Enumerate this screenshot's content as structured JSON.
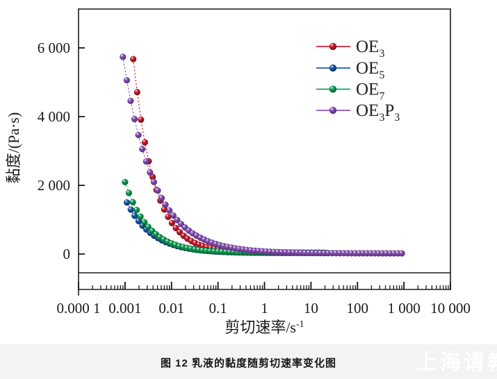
{
  "caption": "图 12  乳液的黏度随剪切速率变化图",
  "watermark": "上海请教",
  "colors": {
    "axis": "#1a1a1a",
    "band": "#f3f3f3"
  },
  "chart_data": {
    "type": "scatter",
    "title": "",
    "x_axis": {
      "label": "剪切速率",
      "unit": "/s",
      "unit_sup": "-1",
      "scale": "log",
      "min_exp": -4,
      "max_exp": 4,
      "tick_labels": [
        "0.000 1",
        "0.001",
        "0.01",
        "0.1",
        "1",
        "10",
        "100",
        "1 000",
        "10 000"
      ]
    },
    "y_axis": {
      "label": "黏度/(Pa·s)",
      "scale": "linear",
      "ticks": [
        0,
        2000,
        4000,
        6000
      ],
      "tick_labels": [
        "0",
        "2 000",
        "4 000",
        "6 000"
      ],
      "display_min": -700,
      "display_max": 7100
    },
    "legend": {
      "position": "top-right"
    },
    "series": [
      {
        "name": "OE3",
        "label_runs": [
          [
            "OE",
            "3"
          ]
        ],
        "color": "#d31f2f",
        "color_dark": "#7a0c1a",
        "x": [
          0.0015,
          0.00182,
          0.0022,
          0.00267,
          0.00323,
          0.00391,
          0.00474,
          0.00575,
          0.00696,
          0.00843,
          0.0102,
          0.0124,
          0.015,
          0.0182,
          0.022,
          0.0267,
          0.0323,
          0.0391,
          0.0474,
          0.0575,
          0.0696,
          0.0843,
          0.102,
          0.124,
          0.15,
          0.182,
          0.22,
          0.267,
          0.323,
          0.391,
          0.474,
          0.575,
          0.696,
          0.843,
          1.02,
          1.24,
          1.5,
          1.82,
          2.2,
          2.67,
          3.23,
          3.91,
          4.74,
          5.75,
          6.96,
          8.43,
          10.2,
          12.4,
          15,
          18.2
        ],
        "y": [
          5674,
          4711,
          3912,
          3250,
          2701,
          2246,
          1869,
          1556,
          1297,
          1082,
          904,
          756,
          634,
          532,
          448,
          378,
          320,
          272,
          233,
          200,
          173,
          150,
          131,
          116,
          103,
          92,
          83,
          76,
          70,
          65,
          61,
          57,
          54,
          52,
          50,
          48,
          47,
          46,
          45,
          44,
          43,
          43,
          42,
          42,
          42,
          41,
          41,
          41,
          41,
          41
        ]
      },
      {
        "name": "OE5",
        "label_runs": [
          [
            "OE",
            "5"
          ]
        ],
        "color": "#1d5cae",
        "color_dark": "#0c3268",
        "x": [
          0.0011,
          0.00133,
          0.00161,
          0.00196,
          0.00237,
          0.00287,
          0.00348,
          0.00421,
          0.00511,
          0.00619,
          0.0075,
          0.00908,
          0.011,
          0.0133,
          0.0161,
          0.0196,
          0.0237,
          0.0287,
          0.0348,
          0.0421,
          0.0511,
          0.0619,
          0.075,
          0.0908,
          0.11,
          0.133,
          0.161,
          0.196,
          0.237,
          0.287,
          0.348,
          0.421,
          0.511,
          0.619,
          0.75,
          0.908,
          1.1,
          1.33,
          1.61,
          1.96,
          2.37,
          2.87,
          3.48,
          4.21,
          5.11,
          6.19,
          7.5,
          9.08,
          11,
          13.3,
          16.1,
          19.6
        ],
        "y": [
          1501,
          1292,
          1113,
          959,
          827,
          714,
          617,
          534,
          462,
          401,
          348,
          303,
          264,
          231,
          202,
          178,
          157,
          139,
          123,
          110,
          99,
          89,
          81,
          73,
          67,
          62,
          57,
          54,
          50,
          47,
          45,
          43,
          41,
          39,
          38,
          37,
          36,
          35,
          34,
          34,
          33,
          33,
          32,
          32,
          32,
          32,
          31,
          31,
          31,
          31,
          31,
          31
        ]
      },
      {
        "name": "OE7",
        "label_runs": [
          [
            "OE",
            "7"
          ]
        ],
        "color": "#13a155",
        "color_dark": "#066534",
        "x": [
          0.001,
          0.00121,
          0.00147,
          0.00178,
          0.00215,
          0.00261,
          0.00316,
          0.00383,
          0.00464,
          0.00562,
          0.00681,
          0.00825,
          0.01,
          0.0121,
          0.0147,
          0.0178,
          0.0215,
          0.0261,
          0.0316,
          0.0383,
          0.0464,
          0.0562,
          0.0681,
          0.0825,
          0.1,
          0.121,
          0.147,
          0.178,
          0.215,
          0.261,
          0.316,
          0.383,
          0.464,
          0.562,
          0.681,
          0.825,
          1,
          1.21,
          1.47,
          1.78,
          2.15,
          2.61,
          3.16,
          3.83,
          4.64,
          5.62,
          6.81,
          8.25,
          10,
          12.1,
          14.7,
          17.8,
          21.5
        ],
        "y": [
          2094,
          1777,
          1509,
          1282,
          1090,
          927,
          790,
          674,
          575,
          492,
          422,
          362,
          312,
          269,
          233,
          203,
          177,
          155,
          136,
          121,
          108,
          96,
          87,
          79,
          72,
          67,
          62,
          58,
          54,
          51,
          49,
          47,
          45,
          43,
          42,
          41,
          40,
          39,
          39,
          38,
          38,
          37,
          37,
          37,
          36,
          36,
          36,
          36,
          36,
          36,
          35,
          35,
          35
        ]
      },
      {
        "name": "OE3P3",
        "label_runs": [
          [
            "OE",
            "3"
          ],
          [
            "P",
            "3"
          ]
        ],
        "color": "#8c52b5",
        "color_dark": "#55307a",
        "x": [
          0.0009,
          0.00109,
          0.00132,
          0.0016,
          0.00194,
          0.00235,
          0.00285,
          0.00345,
          0.00418,
          0.00506,
          0.00613,
          0.00743,
          0.009,
          0.0109,
          0.0132,
          0.016,
          0.0194,
          0.0235,
          0.0285,
          0.0345,
          0.0418,
          0.0506,
          0.0613,
          0.0743,
          0.09,
          0.109,
          0.132,
          0.16,
          0.194,
          0.235,
          0.285,
          0.345,
          0.418,
          0.506,
          0.613,
          0.743,
          0.9,
          1.09,
          1.32,
          1.6,
          1.94,
          2.35,
          2.85,
          3.45,
          4.18,
          5.06,
          6.13,
          7.43,
          9,
          10.9,
          13.2,
          16,
          19.4,
          23.5,
          28.5,
          34.5,
          41.8,
          50.6,
          61.3,
          74.3,
          90,
          109,
          132,
          160,
          194,
          235,
          285,
          345,
          418,
          506,
          613,
          743,
          900
        ],
        "y": [
          5739,
          5058,
          4458,
          3930,
          3465,
          3055,
          2694,
          2376,
          2096,
          1849,
          1631,
          1439,
          1270,
          1121,
          990,
          875,
          773,
          683,
          604,
          535,
          474,
          420,
          372,
          330,
          293,
          261,
          232,
          207,
          185,
          165,
          148,
          133,
          119,
          107,
          97,
          88,
          80,
          73,
          66,
          61,
          56,
          52,
          48,
          45,
          42,
          39,
          37,
          35,
          33,
          32,
          30,
          29,
          28,
          27,
          26,
          25,
          25,
          24,
          24,
          23,
          23,
          23,
          22,
          22,
          22,
          22,
          21,
          21,
          21,
          21,
          21,
          21,
          21
        ]
      }
    ]
  }
}
